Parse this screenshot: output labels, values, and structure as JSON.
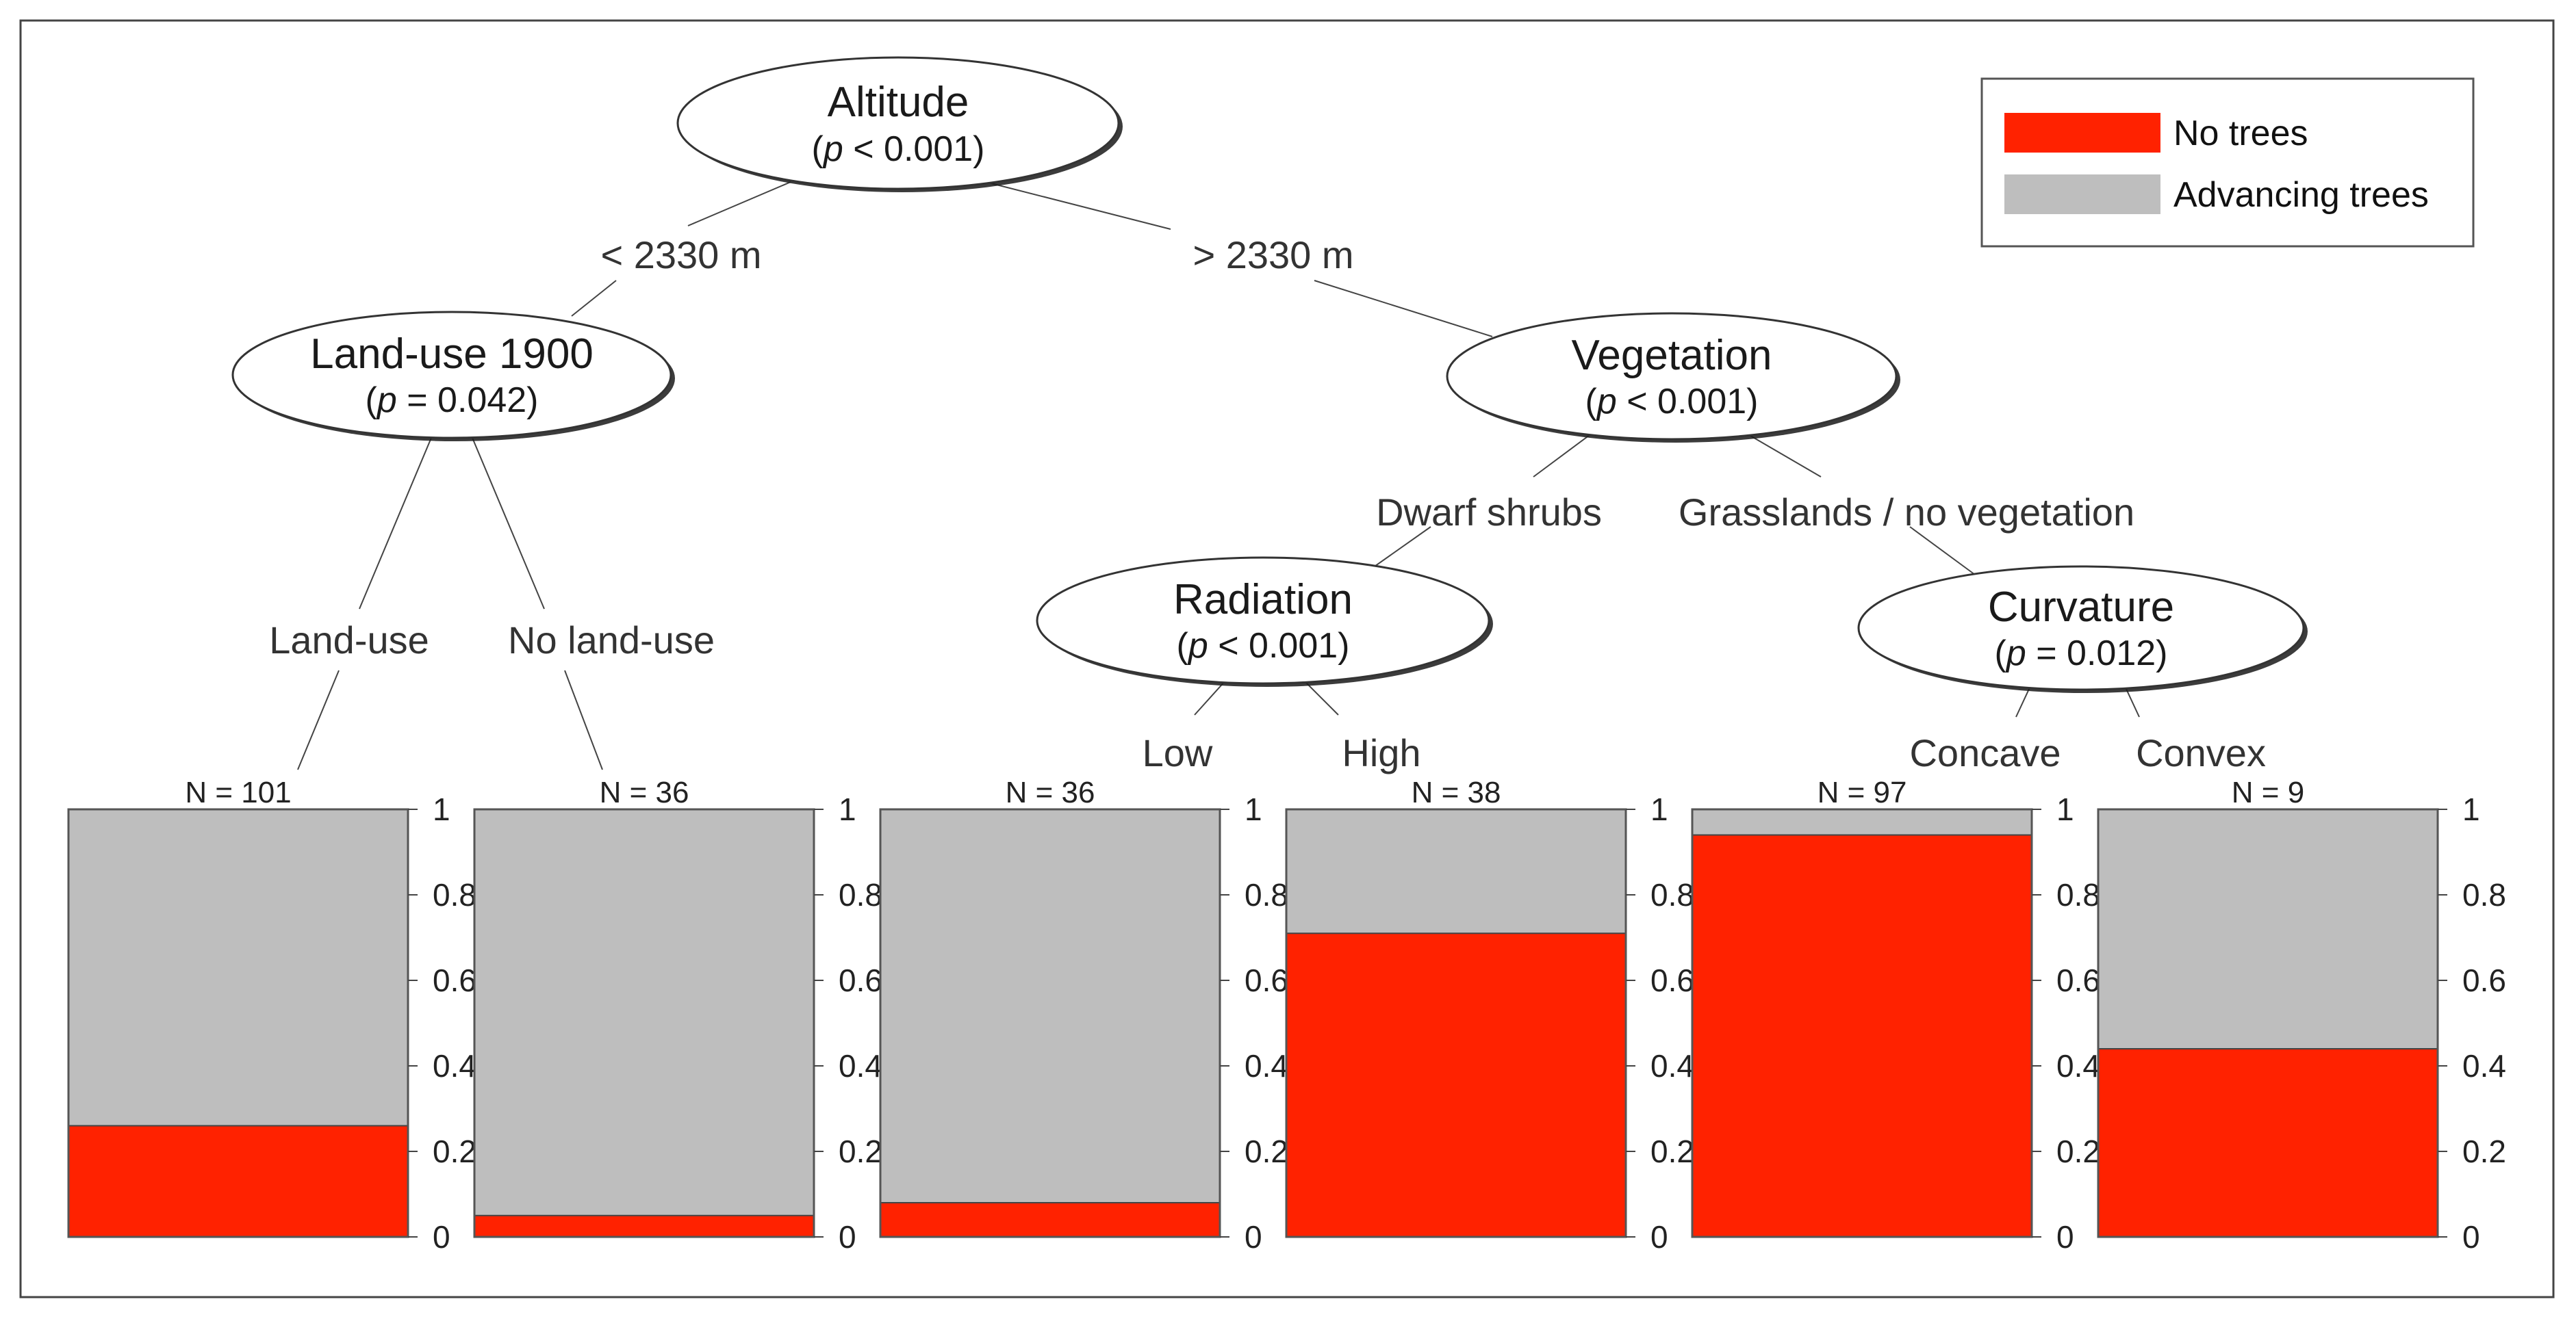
{
  "legend": {
    "items": [
      {
        "label": "No trees",
        "color": "#ff2200"
      },
      {
        "label": "Advancing trees",
        "color": "#bebebe"
      }
    ]
  },
  "tree": {
    "nodes": {
      "altitude": {
        "name": "Altitude",
        "p_prefix": "(",
        "p_letter": "p",
        "p_rest": " < 0.001)"
      },
      "landuse": {
        "name": "Land-use 1900",
        "p_prefix": "(",
        "p_letter": "p",
        "p_rest": " = 0.042)"
      },
      "vegetation": {
        "name": "Vegetation",
        "p_prefix": "(",
        "p_letter": "p",
        "p_rest": " < 0.001)"
      },
      "radiation": {
        "name": "Radiation",
        "p_prefix": "(",
        "p_letter": "p",
        "p_rest": " < 0.001)"
      },
      "curvature": {
        "name": "Curvature",
        "p_prefix": "(",
        "p_letter": "p",
        "p_rest": " = 0.012)"
      }
    },
    "edges": {
      "alt_low": "< 2330 m",
      "alt_high": "> 2330 m",
      "land_use": "Land-use",
      "no_land_use": "No land-use",
      "dwarf": "Dwarf shrubs",
      "grass": "Grasslands / no vegetation",
      "low": "Low",
      "high": "High",
      "concave": "Concave",
      "convex": "Convex"
    }
  },
  "chart_data": {
    "type": "bar",
    "stacked": true,
    "title": "",
    "categories": [
      "Land-use",
      "No land-use",
      "Low",
      "High",
      "Concave",
      "Convex"
    ],
    "n_labels": [
      "N = 101",
      "N = 36",
      "N = 36",
      "N = 38",
      "N = 97",
      "N = 9"
    ],
    "series": [
      {
        "name": "No trees",
        "values": [
          0.26,
          0.05,
          0.08,
          0.71,
          0.94,
          0.44
        ]
      },
      {
        "name": "Advancing trees",
        "values": [
          0.74,
          0.95,
          0.92,
          0.29,
          0.06,
          0.56
        ]
      }
    ],
    "ylim": [
      0,
      1
    ],
    "yticks": [
      "0",
      "0.2",
      "0.4",
      "0.6",
      "0.8",
      "1"
    ],
    "ytick_values": [
      0,
      0.2,
      0.4,
      0.6,
      0.8,
      1
    ]
  }
}
